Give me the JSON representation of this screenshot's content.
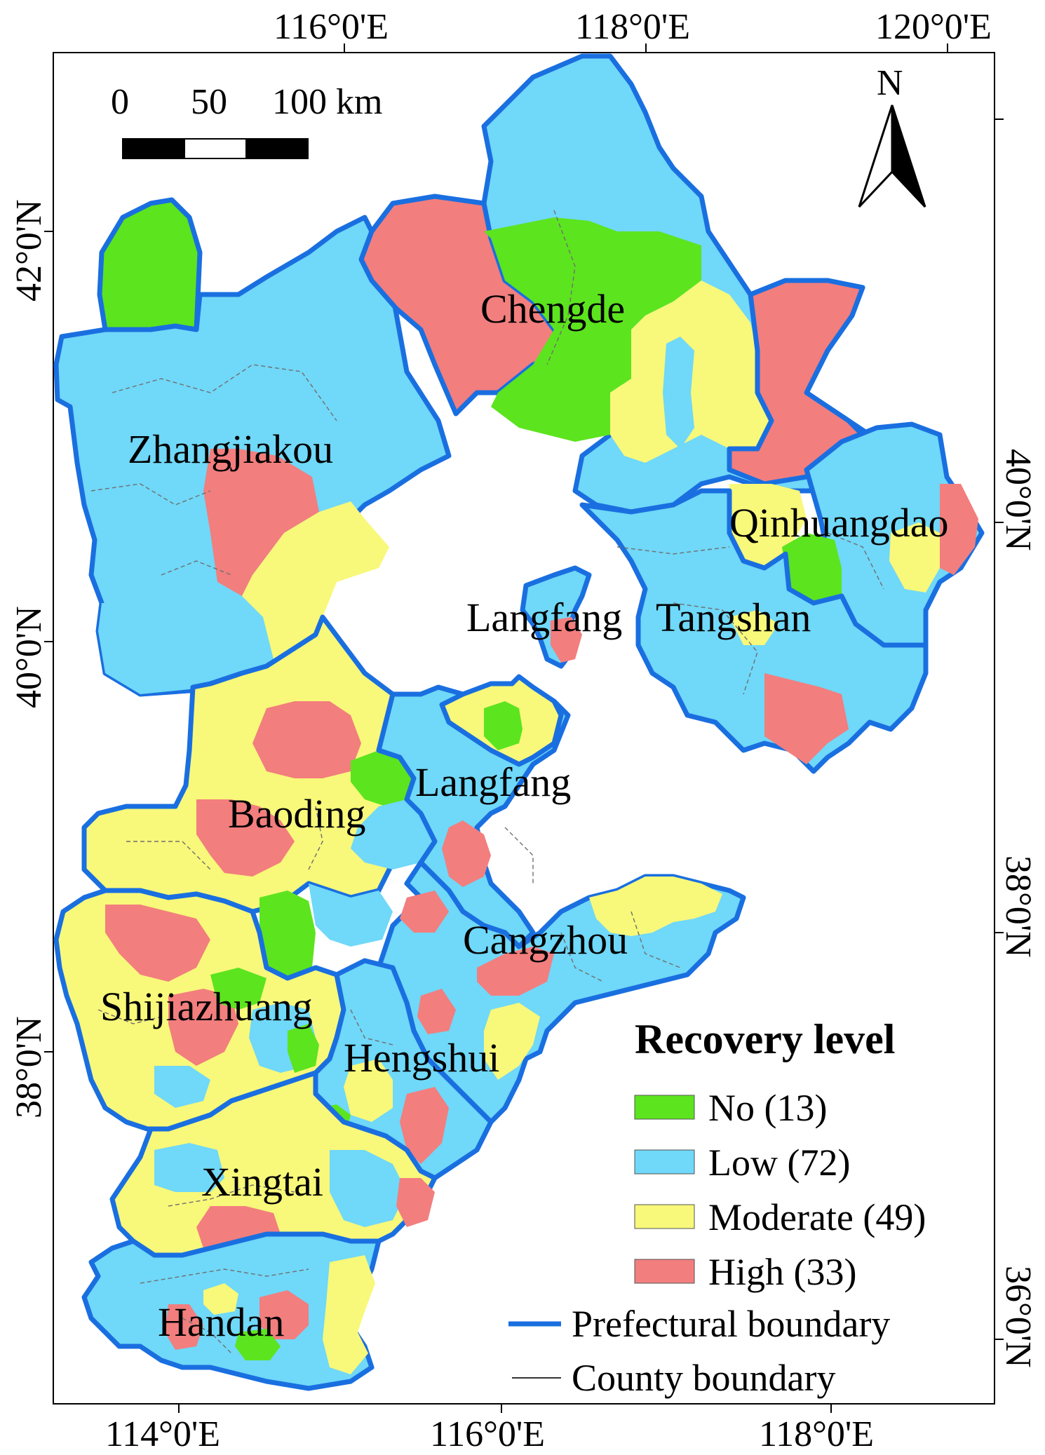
{
  "colors": {
    "no": "#5ce41e",
    "low": "#70d8f8",
    "moderate": "#f8f87a",
    "high": "#f27e7e",
    "prefectural": "#1a6fe0",
    "county": "#6f6f6f"
  },
  "axes": {
    "top": [
      "116°0'E",
      "118°0'E",
      "120°0'E"
    ],
    "bottom": [
      "114°0'E",
      "116°0'E",
      "118°0'E"
    ],
    "left": [
      "42°0'N",
      "40°0'N",
      "38°0'N"
    ],
    "right": [
      "40°0'N",
      "38°0'N",
      "36°0'N"
    ]
  },
  "scalebar": {
    "labels": [
      "0",
      "50",
      "100 km"
    ]
  },
  "north_arrow": {
    "label": "N",
    "icon": "north-arrow-icon"
  },
  "cities": {
    "chengde": "Chengde",
    "zhangjiakou": "Zhangjiakou",
    "qinhuangdao": "Qinhuangdao",
    "langfang_north": "Langfang",
    "tangshan": "Tangshan",
    "langfang": "Langfang",
    "baoding": "Baoding",
    "cangzhou": "Cangzhou",
    "shijiazhuang": "Shijiazhuang",
    "hengshui": "Hengshui",
    "xingtai": "Xingtai",
    "handan": "Handan"
  },
  "legend": {
    "title": "Recovery level",
    "items": [
      {
        "label": "No (13)",
        "level": "no"
      },
      {
        "label": "Low (72)",
        "level": "low"
      },
      {
        "label": "Moderate (49)",
        "level": "moderate"
      },
      {
        "label": "High (33)",
        "level": "high"
      }
    ],
    "lines": [
      {
        "label": "Prefectural boundary"
      },
      {
        "label": "County boundary"
      }
    ]
  }
}
